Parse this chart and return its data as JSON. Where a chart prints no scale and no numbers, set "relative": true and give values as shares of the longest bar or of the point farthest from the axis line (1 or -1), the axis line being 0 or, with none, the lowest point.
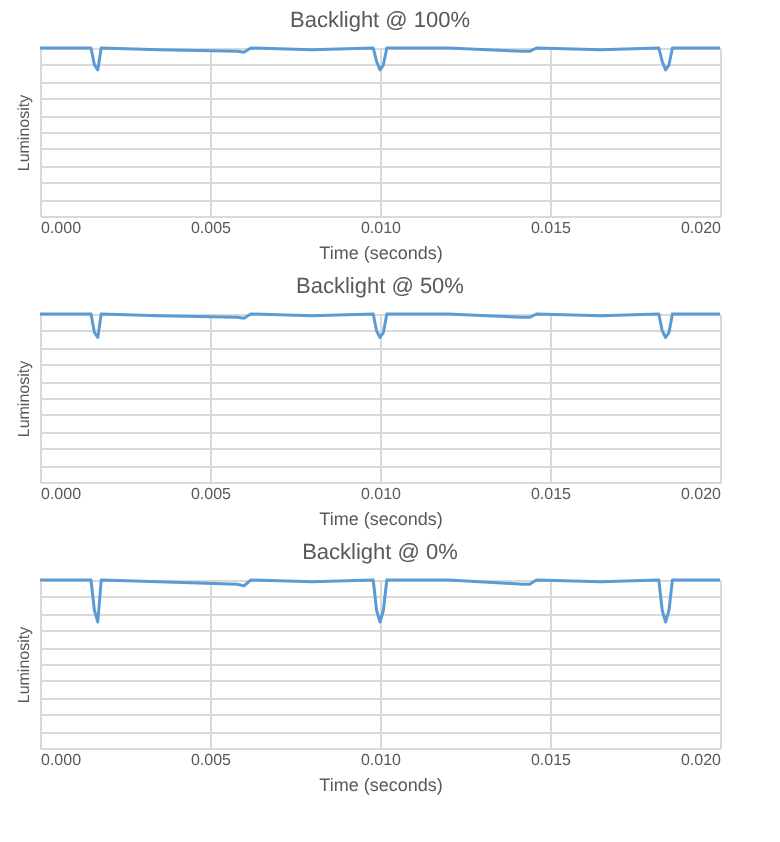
{
  "chart_data": [
    {
      "type": "line",
      "title": "Backlight @ 100%",
      "xlabel": "Time (seconds)",
      "ylabel": "Luminosity",
      "relative": true,
      "grid": true,
      "xlim": [
        0,
        0.02
      ],
      "xticks": [
        {
          "value": 0,
          "label": "0.000"
        },
        {
          "value": 0.005,
          "label": "0.005"
        },
        {
          "value": 0.01,
          "label": "0.010"
        },
        {
          "value": 0.015,
          "label": "0.015"
        },
        {
          "value": 0.02,
          "label": "0.020"
        }
      ],
      "x": [
        0,
        0.0015,
        0.0016,
        0.0017,
        0.0018,
        0.0035,
        0.0058,
        0.006,
        0.0062,
        0.008,
        0.0098,
        0.0099,
        0.01,
        0.0101,
        0.0102,
        0.012,
        0.0142,
        0.0144,
        0.0146,
        0.0165,
        0.0182,
        0.0183,
        0.0184,
        0.0185,
        0.0186,
        0.02
      ],
      "series": [
        {
          "color": "#5b9bd5",
          "values": [
            1,
            1,
            0.9,
            0.87,
            1,
            0.99,
            0.98,
            0.975,
            1,
            0.99,
            1,
            0.92,
            0.87,
            0.9,
            1,
            1,
            0.98,
            0.98,
            1,
            0.99,
            1,
            0.92,
            0.87,
            0.9,
            1,
            1
          ]
        }
      ]
    },
    {
      "type": "line",
      "title": "Backlight @ 50%",
      "xlabel": "Time (seconds)",
      "ylabel": "Luminosity",
      "relative": true,
      "grid": true,
      "xlim": [
        0,
        0.02
      ],
      "xticks": [
        {
          "value": 0,
          "label": "0.000"
        },
        {
          "value": 0.005,
          "label": "0.005"
        },
        {
          "value": 0.01,
          "label": "0.010"
        },
        {
          "value": 0.015,
          "label": "0.015"
        },
        {
          "value": 0.02,
          "label": "0.020"
        }
      ],
      "x": [
        0,
        0.0015,
        0.0016,
        0.0017,
        0.0018,
        0.0035,
        0.0058,
        0.006,
        0.0062,
        0.008,
        0.0098,
        0.0099,
        0.01,
        0.0101,
        0.0102,
        0.012,
        0.0142,
        0.0144,
        0.0146,
        0.0165,
        0.0182,
        0.0183,
        0.0184,
        0.0185,
        0.0186,
        0.02
      ],
      "series": [
        {
          "color": "#5b9bd5",
          "values": [
            1,
            1,
            0.89,
            0.86,
            1,
            0.99,
            0.98,
            0.975,
            1,
            0.99,
            1,
            0.9,
            0.86,
            0.89,
            1,
            1,
            0.98,
            0.98,
            1,
            0.99,
            1,
            0.9,
            0.86,
            0.89,
            1,
            1
          ]
        }
      ]
    },
    {
      "type": "line",
      "title": "Backlight @ 0%",
      "xlabel": "Time (seconds)",
      "ylabel": "Luminosity",
      "relative": true,
      "grid": true,
      "xlim": [
        0,
        0.02
      ],
      "xticks": [
        {
          "value": 0,
          "label": "0.000"
        },
        {
          "value": 0.005,
          "label": "0.005"
        },
        {
          "value": 0.01,
          "label": "0.010"
        },
        {
          "value": 0.015,
          "label": "0.015"
        },
        {
          "value": 0.02,
          "label": "0.020"
        }
      ],
      "x": [
        0,
        0.0015,
        0.0016,
        0.0017,
        0.0018,
        0.0035,
        0.0058,
        0.006,
        0.0062,
        0.008,
        0.0098,
        0.0099,
        0.01,
        0.0101,
        0.0102,
        0.012,
        0.0142,
        0.0144,
        0.0146,
        0.0165,
        0.0182,
        0.0183,
        0.0184,
        0.0185,
        0.0186,
        0.02
      ],
      "series": [
        {
          "color": "#5b9bd5",
          "values": [
            1,
            1,
            0.82,
            0.75,
            1,
            0.99,
            0.975,
            0.965,
            1,
            0.99,
            1,
            0.82,
            0.75,
            0.82,
            1,
            1,
            0.975,
            0.975,
            1,
            0.99,
            1,
            0.82,
            0.75,
            0.82,
            1,
            1
          ]
        }
      ]
    }
  ]
}
